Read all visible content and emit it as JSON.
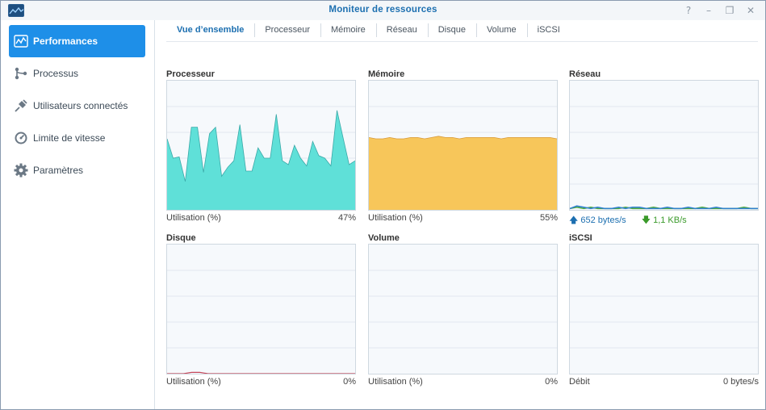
{
  "window": {
    "title": "Moniteur de ressources",
    "controls": [
      "?",
      "–",
      "❐",
      "✕"
    ]
  },
  "sidebar": {
    "items": [
      {
        "label": "Performances",
        "icon": "chart-icon",
        "active": true
      },
      {
        "label": "Processus",
        "icon": "process-icon",
        "active": false
      },
      {
        "label": "Utilisateurs connectés",
        "icon": "plug-icon",
        "active": false
      },
      {
        "label": "Limite de vitesse",
        "icon": "speedometer-icon",
        "active": false
      },
      {
        "label": "Paramètres",
        "icon": "gear-icon",
        "active": false
      }
    ]
  },
  "tabs": [
    {
      "label": "Vue d’ensemble",
      "active": true
    },
    {
      "label": "Processeur"
    },
    {
      "label": "Mémoire"
    },
    {
      "label": "Réseau"
    },
    {
      "label": "Disque"
    },
    {
      "label": "Volume"
    },
    {
      "label": "iSCSI"
    }
  ],
  "panels": {
    "cpu": {
      "title": "Processeur",
      "label": "Utilisation (%)",
      "value": "47%",
      "series": [
        55,
        40,
        41,
        22,
        64,
        64,
        29,
        59,
        64,
        26,
        33,
        38,
        66,
        30,
        30,
        48,
        40,
        40,
        74,
        38,
        35,
        50,
        40,
        34,
        53,
        42,
        40,
        34,
        77,
        56,
        35,
        38
      ],
      "color": "#5fe0d8",
      "stroke": "#3aa9a8"
    },
    "memory": {
      "title": "Mémoire",
      "label": "Utilisation (%)",
      "value": "55%",
      "series": [
        56,
        55,
        55,
        56,
        55,
        55,
        56,
        56,
        55,
        56,
        57,
        56,
        56,
        55,
        56,
        56,
        56,
        56,
        56,
        55,
        56,
        56,
        56,
        56,
        56,
        56,
        56,
        55
      ],
      "color": "#f7c65a",
      "stroke": "#d99a3a"
    },
    "network": {
      "title": "Réseau",
      "up": "652 bytes/s",
      "down": "1,1 KB/s",
      "series_up": [
        1,
        3,
        2,
        1,
        2,
        1,
        1,
        2,
        1,
        2,
        2,
        1,
        1,
        1,
        2,
        1,
        1,
        2,
        1,
        1,
        1,
        2,
        1,
        1,
        1,
        1,
        1,
        1
      ],
      "series_down": [
        1,
        2,
        1,
        2,
        1,
        1,
        1,
        1,
        2,
        1,
        1,
        1,
        2,
        1,
        1,
        1,
        1,
        1,
        1,
        2,
        1,
        1,
        1,
        1,
        1,
        2,
        1,
        1
      ],
      "color_up": "#2f7fd0",
      "color_down": "#4aa83a"
    },
    "disk": {
      "title": "Disque",
      "label": "Utilisation (%)",
      "value": "0%",
      "series": [
        0,
        0,
        0,
        1,
        1,
        0,
        0,
        0,
        0,
        0,
        0,
        0,
        0,
        0,
        0,
        0,
        0,
        0,
        0,
        0,
        0,
        0,
        0,
        0
      ],
      "color": "#c4475a"
    },
    "volume": {
      "title": "Volume",
      "label": "Utilisation (%)",
      "value": "0%"
    },
    "iscsi": {
      "title": "iSCSI",
      "label": "Débit",
      "value": "0 bytes/s"
    }
  }
}
